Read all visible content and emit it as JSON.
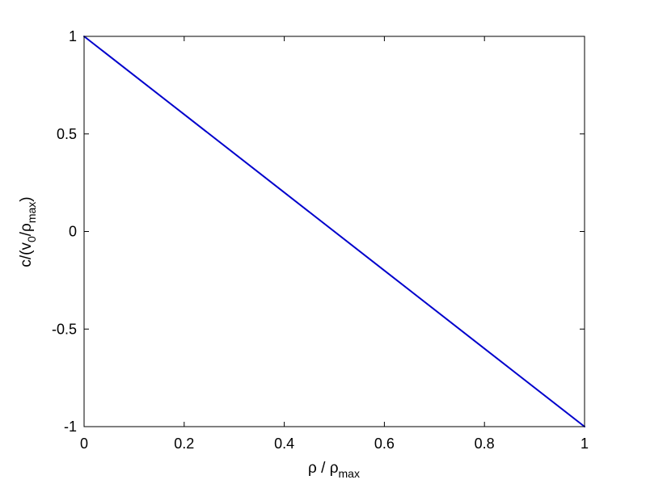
{
  "chart_data": {
    "type": "line",
    "title": "",
    "xlabel": {
      "main": "ρ / ρ",
      "sub": "max"
    },
    "ylabel": {
      "part1": "c/(v",
      "sub1": "0",
      "part2": "/ρ",
      "sub2": "max",
      "part3": ")"
    },
    "xlim": [
      0,
      1
    ],
    "ylim": [
      -1,
      1
    ],
    "xticks": [
      0,
      0.2,
      0.4,
      0.6,
      0.8,
      1
    ],
    "xtick_labels": [
      "0",
      "0.2",
      "0.4",
      "0.6",
      "0.8",
      "1"
    ],
    "yticks": [
      -1,
      -0.5,
      0,
      0.5,
      1
    ],
    "ytick_labels": [
      "-1",
      "-0.5",
      "0",
      "0.5",
      "1"
    ],
    "grid": false,
    "legend": "none",
    "series": [
      {
        "x": [
          0,
          0.2,
          0.4,
          0.6,
          0.8,
          1
        ],
        "y": [
          1,
          0.6,
          0.2,
          -0.2,
          -0.6,
          -1
        ],
        "color": "#0000cc"
      }
    ]
  }
}
